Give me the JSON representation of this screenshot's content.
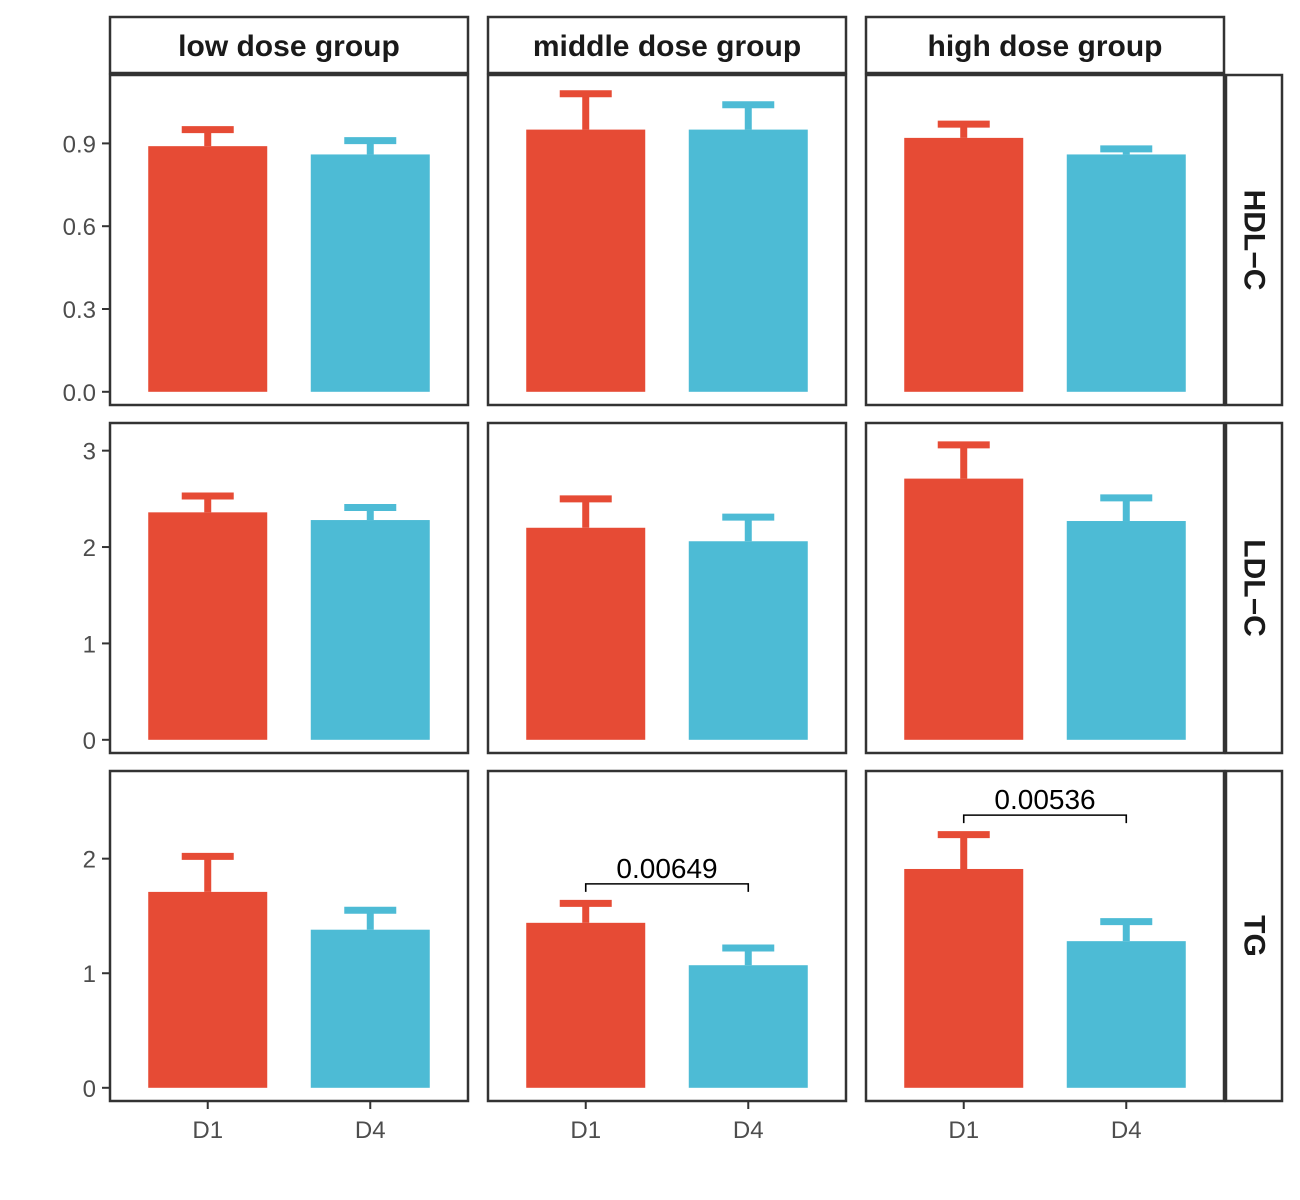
{
  "chart_data": {
    "type": "bar",
    "layout": "facet-grid",
    "categories": [
      "D1",
      "D4"
    ],
    "colors": {
      "D1": "#E64B35",
      "D4": "#4DBBD5"
    },
    "columns": [
      "low dose group",
      "middle dose group",
      "high dose group"
    ],
    "rows": [
      {
        "label": "HDL−C",
        "ylim": [
          0,
          1.1
        ],
        "ticks": [
          0.0,
          0.3,
          0.6,
          0.9
        ],
        "tick_labels": [
          "0.0",
          "0.3",
          "0.6",
          "0.9"
        ]
      },
      {
        "label": "LDL−C",
        "ylim": [
          0,
          3.15
        ],
        "ticks": [
          0,
          1,
          2,
          3
        ],
        "tick_labels": [
          "0",
          "1",
          "2",
          "3"
        ]
      },
      {
        "label": "TG",
        "ylim": [
          0,
          2.65
        ],
        "ticks": [
          0,
          1,
          2
        ],
        "tick_labels": [
          "0",
          "1",
          "2"
        ]
      }
    ],
    "panels": [
      {
        "row": 0,
        "col": 0,
        "values": [
          0.89,
          0.86
        ],
        "errors": [
          0.06,
          0.05
        ]
      },
      {
        "row": 0,
        "col": 1,
        "values": [
          0.95,
          0.95
        ],
        "errors": [
          0.13,
          0.09
        ]
      },
      {
        "row": 0,
        "col": 2,
        "values": [
          0.92,
          0.86
        ],
        "errors": [
          0.05,
          0.02
        ]
      },
      {
        "row": 1,
        "col": 0,
        "values": [
          2.36,
          2.28
        ],
        "errors": [
          0.17,
          0.13
        ]
      },
      {
        "row": 1,
        "col": 1,
        "values": [
          2.2,
          2.06
        ],
        "errors": [
          0.3,
          0.25
        ]
      },
      {
        "row": 1,
        "col": 2,
        "values": [
          2.71,
          2.27
        ],
        "errors": [
          0.35,
          0.24
        ]
      },
      {
        "row": 2,
        "col": 0,
        "values": [
          1.71,
          1.38
        ],
        "errors": [
          0.31,
          0.17
        ]
      },
      {
        "row": 2,
        "col": 1,
        "values": [
          1.44,
          1.07
        ],
        "errors": [
          0.17,
          0.15
        ]
      },
      {
        "row": 2,
        "col": 2,
        "values": [
          1.91,
          1.28
        ],
        "errors": [
          0.3,
          0.17
        ]
      }
    ],
    "annotations": [
      {
        "row": 2,
        "col": 1,
        "text": "0.00649",
        "y": 1.78
      },
      {
        "row": 2,
        "col": 2,
        "text": "0.00536",
        "y": 2.38
      }
    ],
    "grid": false,
    "legend": "none"
  }
}
